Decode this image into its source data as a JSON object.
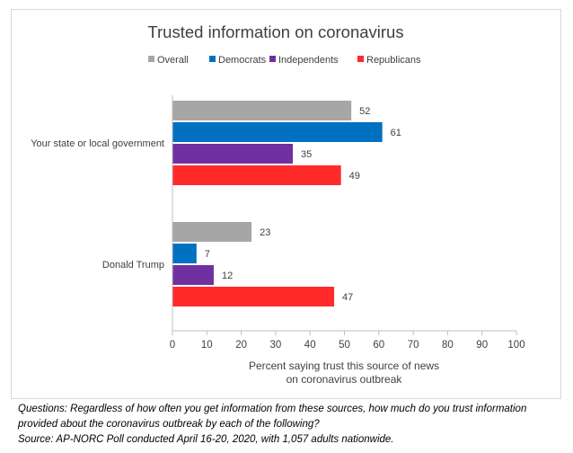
{
  "chart_data": {
    "type": "bar",
    "orientation": "horizontal",
    "title": "Trusted information on coronavirus",
    "xlabel_lines": [
      "Percent saying trust this source of news",
      "on coronavirus outbreak"
    ],
    "categories": [
      "Your state or local government",
      "Donald Trump"
    ],
    "series": [
      {
        "name": "Overall",
        "color": "#a6a6a6",
        "values": [
          52,
          23
        ]
      },
      {
        "name": "Democrats",
        "color": "#0070c0",
        "values": [
          61,
          7
        ]
      },
      {
        "name": "Independents",
        "color": "#7030a0",
        "values": [
          35,
          12
        ]
      },
      {
        "name": "Republicans",
        "color": "#ff2a2a",
        "values": [
          49,
          47
        ]
      }
    ],
    "xlim": [
      0,
      100
    ],
    "xticks": [
      0,
      10,
      20,
      30,
      40,
      50,
      60,
      70,
      80,
      90,
      100
    ],
    "legend_position": "top",
    "grid": false
  },
  "footnotes": {
    "line1": "Questions: Regardless of how often you get information from these sources, how much do you trust information",
    "line2": "provided about the coronavirus outbreak by each of the following?",
    "line3": "Source: AP-NORC Poll conducted April 16-20, 2020, with 1,057 adults nationwide."
  }
}
